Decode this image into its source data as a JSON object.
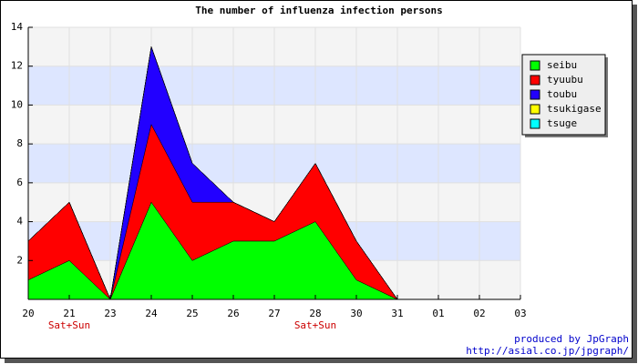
{
  "chart_data": {
    "type": "stacked_area",
    "title": "The number of influenza infection persons",
    "categories": [
      "20",
      "21",
      "23",
      "24",
      "25",
      "26",
      "27",
      "28",
      "30",
      "31",
      "01",
      "02",
      "03"
    ],
    "annotations": [
      {
        "category": "21",
        "text": "Sat+Sun"
      },
      {
        "category": "28",
        "text": "Sat+Sun"
      }
    ],
    "series": [
      {
        "name": "seibu",
        "color": "#00ff00",
        "values": [
          1,
          2,
          0,
          5,
          2,
          3,
          3,
          4,
          1,
          0,
          null,
          null,
          null
        ]
      },
      {
        "name": "tyuubu",
        "color": "#ff0000",
        "values": [
          2,
          3,
          0,
          4,
          3,
          2,
          1,
          3,
          2,
          0,
          null,
          null,
          null
        ]
      },
      {
        "name": "toubu",
        "color": "#2200ff",
        "values": [
          0,
          0,
          0,
          4,
          2,
          0,
          0,
          0,
          0,
          0,
          null,
          null,
          null
        ]
      },
      {
        "name": "tsukigase",
        "color": "#ffff00",
        "values": [
          0,
          0,
          0,
          0,
          0,
          0,
          0,
          0,
          0,
          0,
          null,
          null,
          null
        ]
      },
      {
        "name": "tsuge",
        "color": "#00ffff",
        "values": [
          0,
          0,
          0,
          0,
          0,
          0,
          0,
          0,
          0,
          0,
          null,
          null,
          null
        ]
      }
    ],
    "ylim": [
      0,
      14
    ],
    "yticks": [
      2,
      4,
      6,
      8,
      10,
      12,
      14
    ],
    "grid": true,
    "band_colors": [
      "#f4f4f4",
      "#dde6ff"
    ],
    "legend": "right",
    "footer": [
      "produced by JpGraph",
      "http://asial.co.jp/jpgraph/"
    ]
  }
}
